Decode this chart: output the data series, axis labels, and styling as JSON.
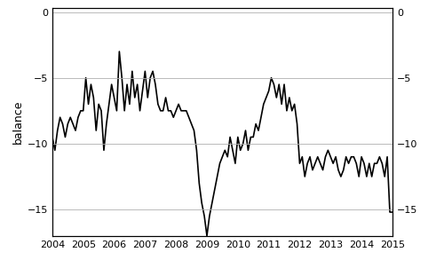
{
  "title": "",
  "ylabel_left": "balance",
  "xlim": [
    2004.0,
    2015.0
  ],
  "ylim": [
    -17.0,
    0.3
  ],
  "yticks": [
    0,
    -5,
    -10,
    -15
  ],
  "xticks": [
    2004,
    2005,
    2006,
    2007,
    2008,
    2009,
    2010,
    2011,
    2012,
    2013,
    2014,
    2015
  ],
  "line_color": "#000000",
  "line_width": 1.2,
  "background_color": "#ffffff",
  "grid_color": "#b0b0b0",
  "grid_linewidth": 0.6,
  "dates": [
    2004.0,
    2004.083,
    2004.167,
    2004.25,
    2004.333,
    2004.417,
    2004.5,
    2004.583,
    2004.667,
    2004.75,
    2004.833,
    2004.917,
    2005.0,
    2005.083,
    2005.167,
    2005.25,
    2005.333,
    2005.417,
    2005.5,
    2005.583,
    2005.667,
    2005.75,
    2005.833,
    2005.917,
    2006.0,
    2006.083,
    2006.167,
    2006.25,
    2006.333,
    2006.417,
    2006.5,
    2006.583,
    2006.667,
    2006.75,
    2006.833,
    2006.917,
    2007.0,
    2007.083,
    2007.167,
    2007.25,
    2007.333,
    2007.417,
    2007.5,
    2007.583,
    2007.667,
    2007.75,
    2007.833,
    2007.917,
    2008.0,
    2008.083,
    2008.167,
    2008.25,
    2008.333,
    2008.417,
    2008.5,
    2008.583,
    2008.667,
    2008.75,
    2008.833,
    2008.917,
    2009.0,
    2009.083,
    2009.167,
    2009.25,
    2009.333,
    2009.417,
    2009.5,
    2009.583,
    2009.667,
    2009.75,
    2009.833,
    2009.917,
    2010.0,
    2010.083,
    2010.167,
    2010.25,
    2010.333,
    2010.417,
    2010.5,
    2010.583,
    2010.667,
    2010.75,
    2010.833,
    2010.917,
    2011.0,
    2011.083,
    2011.167,
    2011.25,
    2011.333,
    2011.417,
    2011.5,
    2011.583,
    2011.667,
    2011.75,
    2011.833,
    2011.917,
    2012.0,
    2012.083,
    2012.167,
    2012.25,
    2012.333,
    2012.417,
    2012.5,
    2012.583,
    2012.667,
    2012.75,
    2012.833,
    2012.917,
    2013.0,
    2013.083,
    2013.167,
    2013.25,
    2013.333,
    2013.417,
    2013.5,
    2013.583,
    2013.667,
    2013.75,
    2013.833,
    2013.917,
    2014.0,
    2014.083,
    2014.167,
    2014.25,
    2014.333,
    2014.417,
    2014.5,
    2014.583,
    2014.667,
    2014.75,
    2014.833,
    2014.917,
    2015.0
  ],
  "values": [
    -9.5,
    -10.5,
    -9.0,
    -8.0,
    -8.5,
    -9.5,
    -8.5,
    -8.0,
    -8.5,
    -9.0,
    -8.0,
    -7.5,
    -7.5,
    -5.0,
    -7.0,
    -5.5,
    -6.5,
    -9.0,
    -7.0,
    -7.5,
    -10.5,
    -8.5,
    -7.0,
    -5.5,
    -6.5,
    -7.5,
    -3.0,
    -5.0,
    -7.5,
    -5.5,
    -7.0,
    -4.5,
    -6.5,
    -5.5,
    -7.5,
    -6.0,
    -4.5,
    -6.5,
    -5.0,
    -4.5,
    -5.5,
    -7.0,
    -7.5,
    -7.5,
    -6.5,
    -7.5,
    -7.5,
    -8.0,
    -7.5,
    -7.0,
    -7.5,
    -7.5,
    -7.5,
    -8.0,
    -8.5,
    -9.0,
    -10.5,
    -13.0,
    -14.5,
    -15.5,
    -17.0,
    -15.5,
    -14.5,
    -13.5,
    -12.5,
    -11.5,
    -11.0,
    -10.5,
    -11.0,
    -9.5,
    -10.5,
    -11.5,
    -9.5,
    -10.5,
    -10.0,
    -9.0,
    -10.5,
    -9.5,
    -9.5,
    -8.5,
    -9.0,
    -8.0,
    -7.0,
    -6.5,
    -6.0,
    -5.0,
    -5.5,
    -6.5,
    -5.5,
    -7.0,
    -5.5,
    -7.5,
    -6.5,
    -7.5,
    -7.0,
    -8.5,
    -11.5,
    -11.0,
    -12.5,
    -11.5,
    -11.0,
    -12.0,
    -11.5,
    -11.0,
    -11.5,
    -12.0,
    -11.0,
    -10.5,
    -11.0,
    -11.5,
    -11.0,
    -12.0,
    -12.5,
    -12.0,
    -11.0,
    -11.5,
    -11.0,
    -11.0,
    -11.5,
    -12.5,
    -11.0,
    -11.5,
    -12.5,
    -11.5,
    -12.5,
    -11.5,
    -11.5,
    -11.0,
    -11.5,
    -12.5,
    -11.0,
    -15.2,
    -15.2
  ]
}
